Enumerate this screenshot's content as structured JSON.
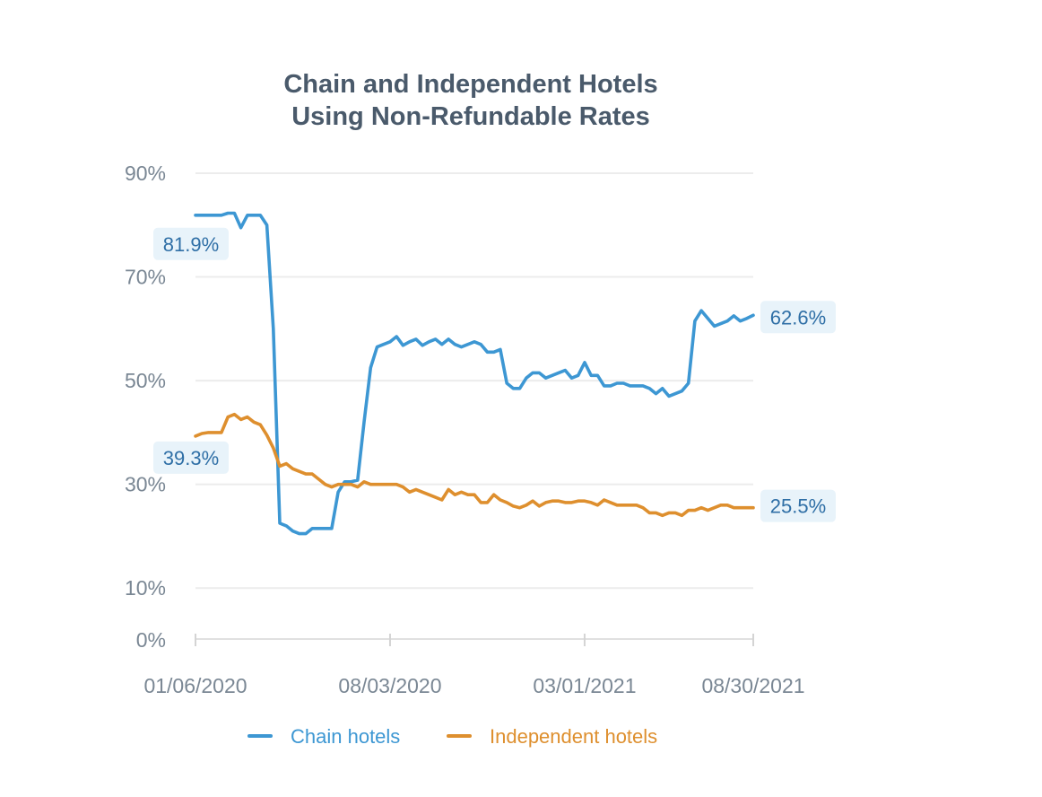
{
  "chart_data": {
    "type": "line",
    "title": [
      "Chain and Independent Hotels",
      "Using Non-Refundable Rates"
    ],
    "xlabel": "",
    "ylabel": "",
    "x_start": "01/06/2020",
    "x_end": "08/30/2021",
    "x_ticks": [
      {
        "date": "01/06/2020",
        "label": "01/06/2020"
      },
      {
        "date": "08/03/2020",
        "label": "08/03/2020"
      },
      {
        "date": "03/01/2021",
        "label": "03/01/2021"
      },
      {
        "date": "08/30/2021",
        "label": "08/30/2021"
      }
    ],
    "y_ticks": [
      {
        "value": 0,
        "label": "0%"
      },
      {
        "value": 10,
        "label": "10%"
      },
      {
        "value": 30,
        "label": "30%"
      },
      {
        "value": 50,
        "label": "50%"
      },
      {
        "value": 70,
        "label": "70%"
      },
      {
        "value": 90,
        "label": "90%"
      }
    ],
    "ylim": [
      0,
      90
    ],
    "grid": true,
    "legend_position": "bottom",
    "series": [
      {
        "name": "Chain hotels",
        "color": "#3d97d3",
        "start_label": "81.9%",
        "end_label": "62.6%",
        "points": [
          [
            "2020-01-06",
            81.9
          ],
          [
            "2020-01-13",
            81.9
          ],
          [
            "2020-01-20",
            81.9
          ],
          [
            "2020-01-27",
            81.9
          ],
          [
            "2020-02-03",
            81.9
          ],
          [
            "2020-02-10",
            82.3
          ],
          [
            "2020-02-17",
            82.3
          ],
          [
            "2020-02-24",
            79.5
          ],
          [
            "2020-03-02",
            81.9
          ],
          [
            "2020-03-09",
            81.9
          ],
          [
            "2020-03-16",
            81.9
          ],
          [
            "2020-03-23",
            80.0
          ],
          [
            "2020-03-30",
            60.0
          ],
          [
            "2020-04-06",
            22.5
          ],
          [
            "2020-04-13",
            22.0
          ],
          [
            "2020-04-20",
            21.0
          ],
          [
            "2020-04-27",
            20.5
          ],
          [
            "2020-05-04",
            20.5
          ],
          [
            "2020-05-11",
            21.5
          ],
          [
            "2020-05-18",
            21.5
          ],
          [
            "2020-05-25",
            21.5
          ],
          [
            "2020-06-01",
            21.5
          ],
          [
            "2020-06-08",
            28.5
          ],
          [
            "2020-06-15",
            30.5
          ],
          [
            "2020-06-22",
            30.5
          ],
          [
            "2020-06-29",
            30.8
          ],
          [
            "2020-07-06",
            42.0
          ],
          [
            "2020-07-13",
            52.5
          ],
          [
            "2020-07-20",
            56.5
          ],
          [
            "2020-07-27",
            57.0
          ],
          [
            "2020-08-03",
            57.5
          ],
          [
            "2020-08-10",
            58.5
          ],
          [
            "2020-08-17",
            56.8
          ],
          [
            "2020-08-24",
            57.5
          ],
          [
            "2020-08-31",
            58.0
          ],
          [
            "2020-09-07",
            56.8
          ],
          [
            "2020-09-14",
            57.5
          ],
          [
            "2020-09-21",
            58.0
          ],
          [
            "2020-09-28",
            57.0
          ],
          [
            "2020-10-05",
            58.0
          ],
          [
            "2020-10-12",
            57.0
          ],
          [
            "2020-10-19",
            56.5
          ],
          [
            "2020-10-26",
            57.0
          ],
          [
            "2020-11-02",
            57.5
          ],
          [
            "2020-11-09",
            57.0
          ],
          [
            "2020-11-16",
            55.5
          ],
          [
            "2020-11-23",
            55.5
          ],
          [
            "2020-11-30",
            56.0
          ],
          [
            "2020-12-07",
            49.5
          ],
          [
            "2020-12-14",
            48.5
          ],
          [
            "2020-12-21",
            48.5
          ],
          [
            "2020-12-28",
            50.5
          ],
          [
            "2021-01-04",
            51.5
          ],
          [
            "2021-01-11",
            51.5
          ],
          [
            "2021-01-18",
            50.5
          ],
          [
            "2021-01-25",
            51.0
          ],
          [
            "2021-02-01",
            51.5
          ],
          [
            "2021-02-08",
            52.0
          ],
          [
            "2021-02-15",
            50.5
          ],
          [
            "2021-02-22",
            51.0
          ],
          [
            "2021-03-01",
            53.5
          ],
          [
            "2021-03-08",
            51.0
          ],
          [
            "2021-03-15",
            51.0
          ],
          [
            "2021-03-22",
            49.0
          ],
          [
            "2021-03-29",
            49.0
          ],
          [
            "2021-04-05",
            49.5
          ],
          [
            "2021-04-12",
            49.5
          ],
          [
            "2021-04-19",
            49.0
          ],
          [
            "2021-04-26",
            49.0
          ],
          [
            "2021-05-03",
            49.0
          ],
          [
            "2021-05-10",
            48.5
          ],
          [
            "2021-05-17",
            47.5
          ],
          [
            "2021-05-24",
            48.5
          ],
          [
            "2021-05-31",
            47.0
          ],
          [
            "2021-06-07",
            47.5
          ],
          [
            "2021-06-14",
            48.0
          ],
          [
            "2021-06-21",
            49.5
          ],
          [
            "2021-06-28",
            61.5
          ],
          [
            "2021-07-05",
            63.5
          ],
          [
            "2021-07-12",
            62.0
          ],
          [
            "2021-07-19",
            60.5
          ],
          [
            "2021-07-26",
            61.0
          ],
          [
            "2021-08-02",
            61.5
          ],
          [
            "2021-08-09",
            62.5
          ],
          [
            "2021-08-16",
            61.5
          ],
          [
            "2021-08-23",
            62.0
          ],
          [
            "2021-08-30",
            62.6
          ]
        ]
      },
      {
        "name": "Independent hotels",
        "color": "#de8f2e",
        "start_label": "39.3%",
        "end_label": "25.5%",
        "points": [
          [
            "2020-01-06",
            39.3
          ],
          [
            "2020-01-13",
            39.8
          ],
          [
            "2020-01-20",
            40.0
          ],
          [
            "2020-01-27",
            40.0
          ],
          [
            "2020-02-03",
            40.0
          ],
          [
            "2020-02-10",
            43.0
          ],
          [
            "2020-02-17",
            43.5
          ],
          [
            "2020-02-24",
            42.5
          ],
          [
            "2020-03-02",
            43.0
          ],
          [
            "2020-03-09",
            42.0
          ],
          [
            "2020-03-16",
            41.5
          ],
          [
            "2020-03-23",
            39.5
          ],
          [
            "2020-03-30",
            37.0
          ],
          [
            "2020-04-06",
            33.5
          ],
          [
            "2020-04-13",
            34.0
          ],
          [
            "2020-04-20",
            33.0
          ],
          [
            "2020-04-27",
            32.5
          ],
          [
            "2020-05-04",
            32.0
          ],
          [
            "2020-05-11",
            32.0
          ],
          [
            "2020-05-18",
            31.0
          ],
          [
            "2020-05-25",
            30.0
          ],
          [
            "2020-06-01",
            29.5
          ],
          [
            "2020-06-08",
            30.0
          ],
          [
            "2020-06-15",
            30.0
          ],
          [
            "2020-06-22",
            30.0
          ],
          [
            "2020-06-29",
            29.5
          ],
          [
            "2020-07-06",
            30.5
          ],
          [
            "2020-07-13",
            30.0
          ],
          [
            "2020-07-20",
            30.0
          ],
          [
            "2020-07-27",
            30.0
          ],
          [
            "2020-08-03",
            30.0
          ],
          [
            "2020-08-10",
            30.0
          ],
          [
            "2020-08-17",
            29.5
          ],
          [
            "2020-08-24",
            28.5
          ],
          [
            "2020-08-31",
            29.0
          ],
          [
            "2020-09-07",
            28.5
          ],
          [
            "2020-09-14",
            28.0
          ],
          [
            "2020-09-21",
            27.5
          ],
          [
            "2020-09-28",
            27.0
          ],
          [
            "2020-10-05",
            29.0
          ],
          [
            "2020-10-12",
            28.0
          ],
          [
            "2020-10-19",
            28.5
          ],
          [
            "2020-10-26",
            28.0
          ],
          [
            "2020-11-02",
            28.0
          ],
          [
            "2020-11-09",
            26.5
          ],
          [
            "2020-11-16",
            26.5
          ],
          [
            "2020-11-23",
            28.0
          ],
          [
            "2020-11-30",
            27.0
          ],
          [
            "2020-12-07",
            26.5
          ],
          [
            "2020-12-14",
            25.8
          ],
          [
            "2020-12-21",
            25.5
          ],
          [
            "2020-12-28",
            26.0
          ],
          [
            "2021-01-04",
            26.8
          ],
          [
            "2021-01-11",
            25.8
          ],
          [
            "2021-01-18",
            26.5
          ],
          [
            "2021-01-25",
            26.8
          ],
          [
            "2021-02-01",
            26.8
          ],
          [
            "2021-02-08",
            26.5
          ],
          [
            "2021-02-15",
            26.5
          ],
          [
            "2021-02-22",
            26.8
          ],
          [
            "2021-03-01",
            26.8
          ],
          [
            "2021-03-08",
            26.5
          ],
          [
            "2021-03-15",
            26.0
          ],
          [
            "2021-03-22",
            27.0
          ],
          [
            "2021-03-29",
            26.5
          ],
          [
            "2021-04-05",
            26.0
          ],
          [
            "2021-04-12",
            26.0
          ],
          [
            "2021-04-19",
            26.0
          ],
          [
            "2021-04-26",
            26.0
          ],
          [
            "2021-05-03",
            25.5
          ],
          [
            "2021-05-10",
            24.5
          ],
          [
            "2021-05-17",
            24.5
          ],
          [
            "2021-05-24",
            24.0
          ],
          [
            "2021-05-31",
            24.5
          ],
          [
            "2021-06-07",
            24.5
          ],
          [
            "2021-06-14",
            24.0
          ],
          [
            "2021-06-21",
            25.0
          ],
          [
            "2021-06-28",
            25.0
          ],
          [
            "2021-07-05",
            25.5
          ],
          [
            "2021-07-12",
            25.0
          ],
          [
            "2021-07-19",
            25.5
          ],
          [
            "2021-07-26",
            26.0
          ],
          [
            "2021-08-02",
            26.0
          ],
          [
            "2021-08-09",
            25.5
          ],
          [
            "2021-08-16",
            25.5
          ],
          [
            "2021-08-23",
            25.5
          ],
          [
            "2021-08-30",
            25.5
          ]
        ]
      }
    ],
    "label_background": "#e8f3fa"
  }
}
